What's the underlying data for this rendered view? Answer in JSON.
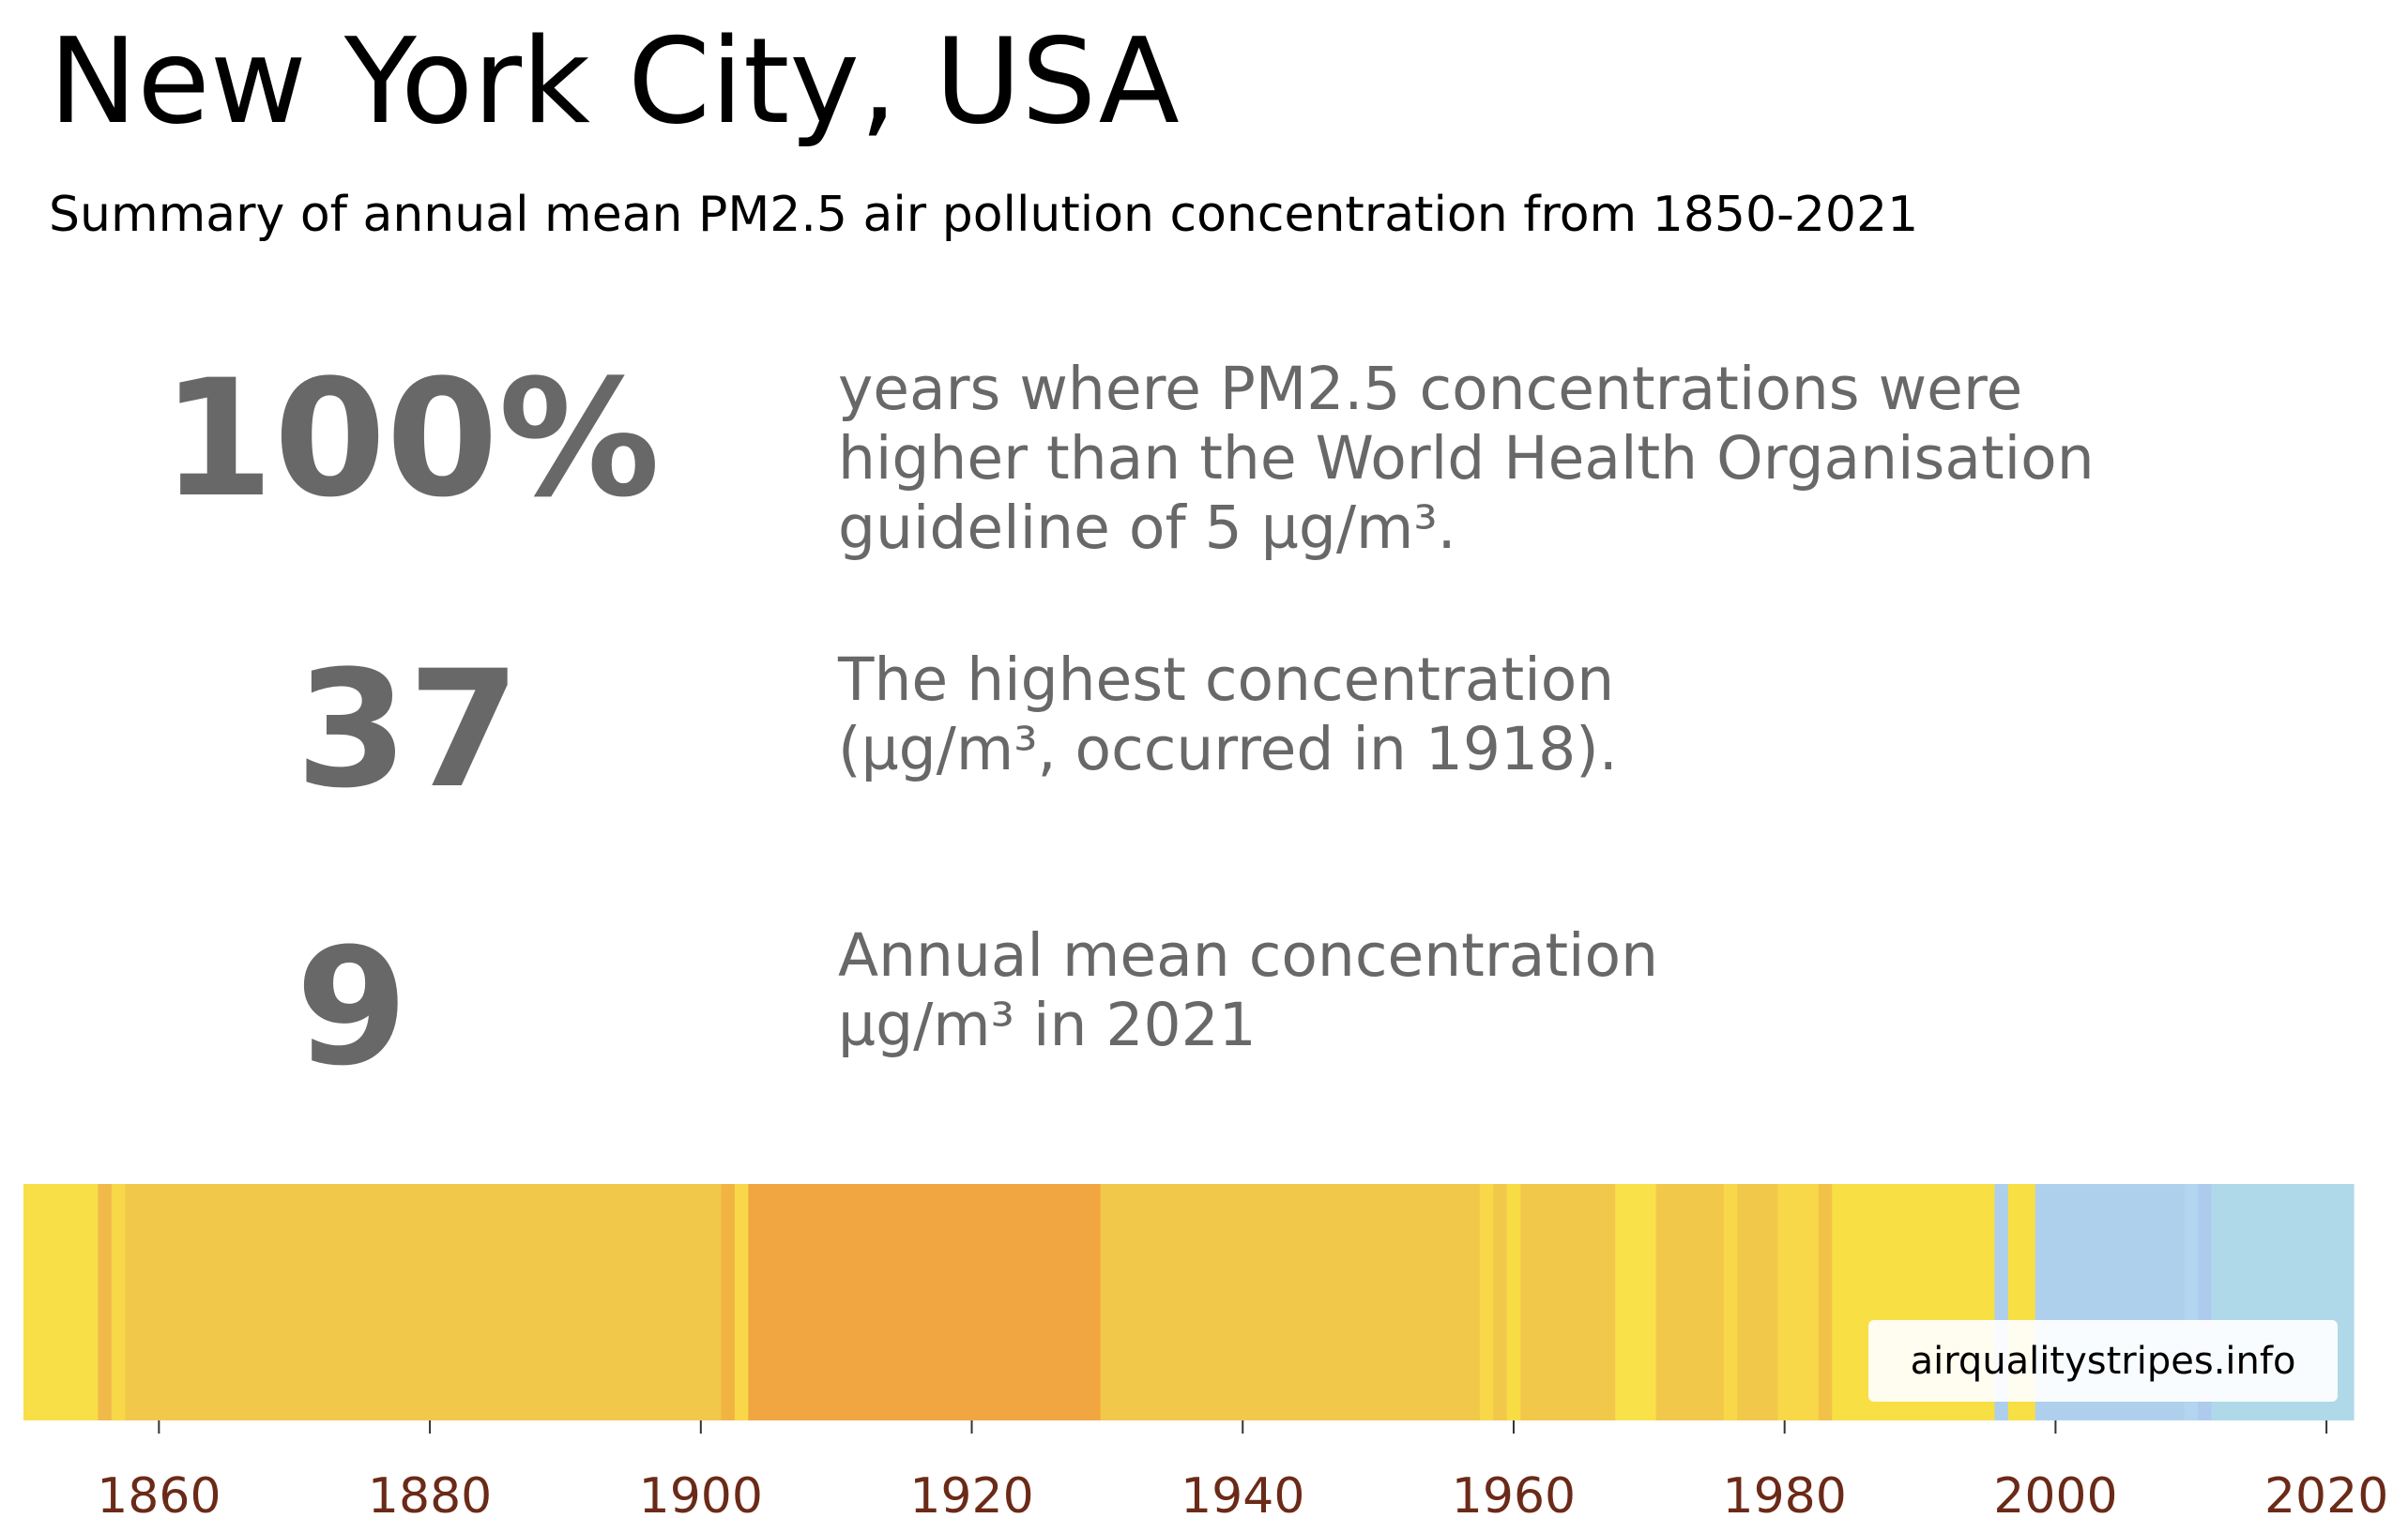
{
  "header": {
    "title": "New York City, USA",
    "subtitle": "Summary of annual mean PM2.5 air pollution concentration from 1850-2021"
  },
  "stats": [
    {
      "value": "100%",
      "description": "years where PM2.5 concentrations were\nhigher than the World Health Organisation\nguideline of 5 µg/m³."
    },
    {
      "value": "37",
      "description": "The highest concentration\n(µg/m³, occurred in 1918)."
    },
    {
      "value": "9",
      "description": "Annual mean concentration\nµg/m³ in 2021"
    }
  ],
  "credit": "airqualitystripes.info",
  "chart_data": {
    "type": "heatmap",
    "x_range": [
      1850,
      2022
    ],
    "x_ticks": [
      1860,
      1880,
      1900,
      1920,
      1940,
      1960,
      1980,
      2000,
      2020
    ],
    "tick_color": "#6b2a18",
    "segments": [
      {
        "start": 1850,
        "end": 1855.5,
        "color": "#f8df48"
      },
      {
        "start": 1855.5,
        "end": 1856.5,
        "color": "#f1b94a"
      },
      {
        "start": 1856.5,
        "end": 1857.5,
        "color": "#f8d848"
      },
      {
        "start": 1857.5,
        "end": 1901.5,
        "color": "#f2c84b"
      },
      {
        "start": 1901.5,
        "end": 1902.5,
        "color": "#f1b442"
      },
      {
        "start": 1902.5,
        "end": 1903.5,
        "color": "#f8d848"
      },
      {
        "start": 1903.5,
        "end": 1929.5,
        "color": "#f1a641"
      },
      {
        "start": 1929.5,
        "end": 1957.5,
        "color": "#f2c84b"
      },
      {
        "start": 1957.5,
        "end": 1958.5,
        "color": "#f8d848"
      },
      {
        "start": 1958.5,
        "end": 1959.5,
        "color": "#f2c84b"
      },
      {
        "start": 1959.5,
        "end": 1960.5,
        "color": "#f8dc44"
      },
      {
        "start": 1960.5,
        "end": 1967.5,
        "color": "#f2c84b"
      },
      {
        "start": 1967.5,
        "end": 1970.5,
        "color": "#f9e14a"
      },
      {
        "start": 1970.5,
        "end": 1975.5,
        "color": "#f2c84b"
      },
      {
        "start": 1975.5,
        "end": 1976.5,
        "color": "#f8d848"
      },
      {
        "start": 1976.5,
        "end": 1979.5,
        "color": "#f2c84b"
      },
      {
        "start": 1979.5,
        "end": 1982.5,
        "color": "#f8d848"
      },
      {
        "start": 1982.5,
        "end": 1983.5,
        "color": "#f2c248"
      },
      {
        "start": 1983.5,
        "end": 1995.5,
        "color": "#f8df44"
      },
      {
        "start": 1995.5,
        "end": 1996.5,
        "color": "#aecfeb"
      },
      {
        "start": 1996.5,
        "end": 1998.5,
        "color": "#f8df44"
      },
      {
        "start": 1998.5,
        "end": 2009.5,
        "color": "#afd0ed"
      },
      {
        "start": 2009.5,
        "end": 2010.5,
        "color": "#b2d5f0"
      },
      {
        "start": 2010.5,
        "end": 2011.5,
        "color": "#aecbee"
      },
      {
        "start": 2011.5,
        "end": 2022,
        "color": "#afd8e8"
      }
    ]
  }
}
